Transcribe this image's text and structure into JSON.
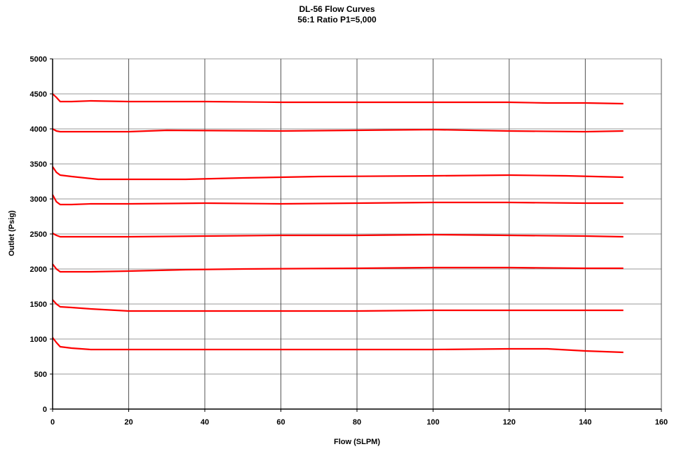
{
  "chart_data": {
    "type": "line",
    "title": "DL-56 Flow Curves",
    "subtitle": "56:1 Ratio P1=5,000",
    "xlabel": "Flow (SLPM)",
    "ylabel": "Outlet (Psig)",
    "xlim": [
      0,
      160
    ],
    "ylim": [
      0,
      5000
    ],
    "x_ticks": [
      "0",
      "20",
      "40",
      "60",
      "80",
      "100",
      "120",
      "140",
      "160"
    ],
    "y_ticks": [
      "0",
      "500",
      "1000",
      "1500",
      "2000",
      "2500",
      "3000",
      "3500",
      "4000",
      "4500",
      "5000"
    ],
    "grid": true,
    "legend": "none",
    "series_color": "#ff0000",
    "series": [
      {
        "x": [
          0,
          1,
          2,
          5,
          10,
          20,
          40,
          60,
          80,
          100,
          120,
          130,
          140,
          150
        ],
        "y": [
          4500,
          4450,
          4390,
          4390,
          4400,
          4390,
          4390,
          4380,
          4380,
          4380,
          4380,
          4370,
          4370,
          4360
        ]
      },
      {
        "x": [
          0,
          1,
          2,
          10,
          20,
          30,
          60,
          100,
          120,
          140,
          150
        ],
        "y": [
          4000,
          3970,
          3960,
          3960,
          3960,
          3980,
          3970,
          3990,
          3970,
          3960,
          3970
        ]
      },
      {
        "x": [
          0,
          1,
          2,
          5,
          12,
          20,
          35,
          50,
          70,
          100,
          120,
          135,
          150
        ],
        "y": [
          3460,
          3380,
          3340,
          3320,
          3280,
          3280,
          3280,
          3300,
          3320,
          3330,
          3340,
          3330,
          3310
        ]
      },
      {
        "x": [
          0,
          1,
          2,
          5,
          10,
          20,
          40,
          60,
          80,
          100,
          120,
          140,
          150
        ],
        "y": [
          3060,
          2960,
          2920,
          2920,
          2930,
          2930,
          2940,
          2930,
          2940,
          2950,
          2950,
          2940,
          2940
        ]
      },
      {
        "x": [
          0,
          1,
          2,
          5,
          10,
          20,
          40,
          60,
          80,
          100,
          120,
          140,
          150
        ],
        "y": [
          2510,
          2480,
          2460,
          2460,
          2460,
          2460,
          2470,
          2480,
          2480,
          2490,
          2480,
          2470,
          2460
        ]
      },
      {
        "x": [
          0,
          1,
          2,
          5,
          10,
          20,
          35,
          50,
          80,
          100,
          120,
          140,
          150
        ],
        "y": [
          2070,
          2000,
          1960,
          1960,
          1960,
          1970,
          1990,
          2000,
          2010,
          2020,
          2020,
          2010,
          2010
        ]
      },
      {
        "x": [
          0,
          1,
          2,
          5,
          10,
          20,
          40,
          60,
          80,
          100,
          120,
          140,
          150
        ],
        "y": [
          1560,
          1500,
          1460,
          1450,
          1430,
          1400,
          1400,
          1400,
          1400,
          1410,
          1410,
          1410,
          1410
        ]
      },
      {
        "x": [
          0,
          1,
          2,
          5,
          10,
          20,
          40,
          60,
          80,
          100,
          120,
          130,
          140,
          150
        ],
        "y": [
          1020,
          950,
          890,
          870,
          850,
          850,
          850,
          850,
          850,
          850,
          860,
          860,
          830,
          810
        ]
      }
    ]
  }
}
